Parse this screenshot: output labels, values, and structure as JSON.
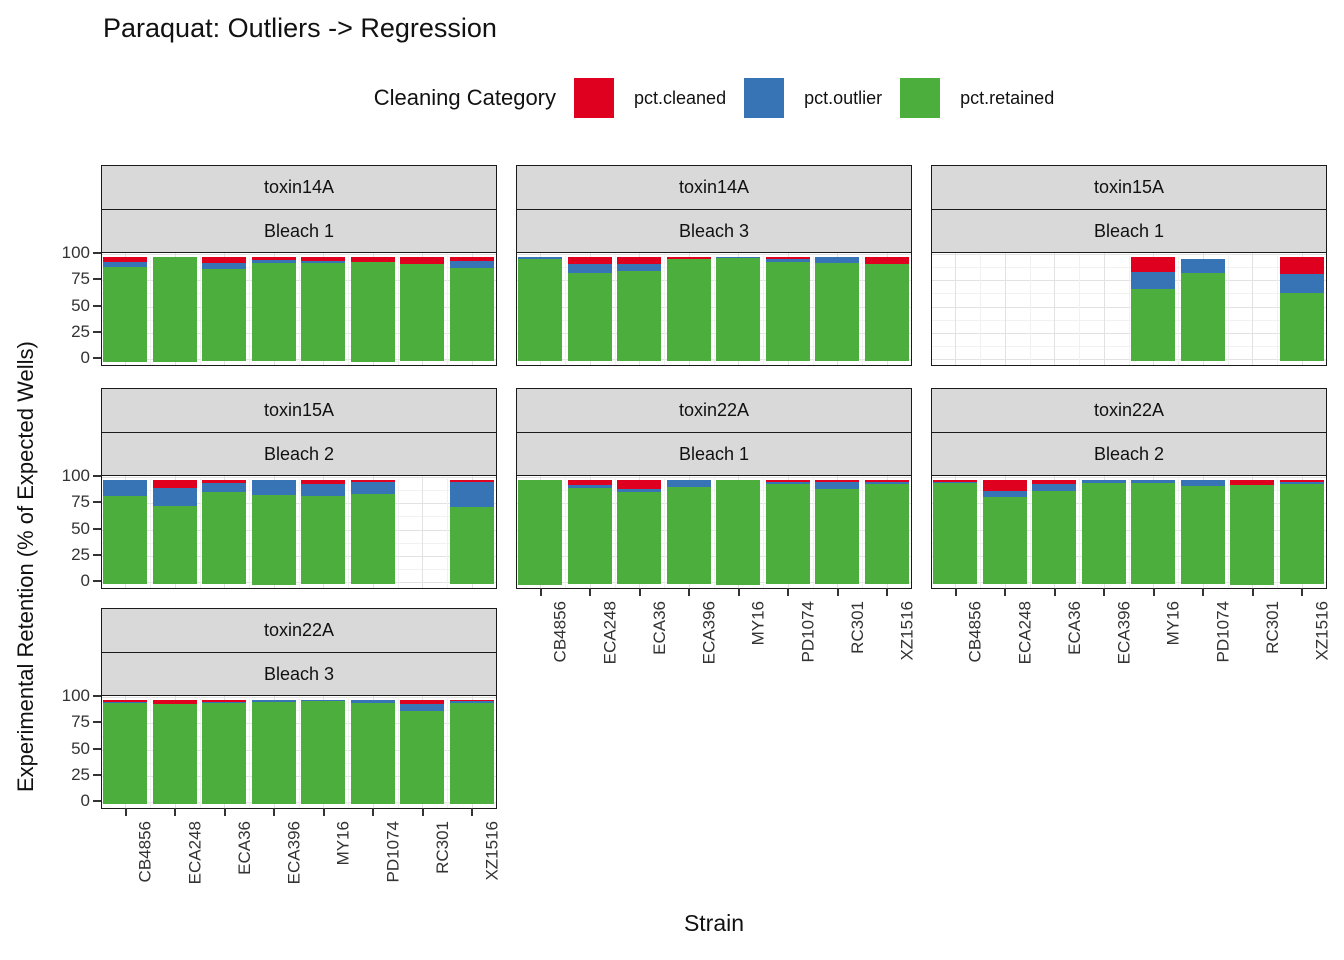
{
  "chart_data": {
    "type": "bar",
    "stacked": true,
    "title": "Paraquat: Outliers -> Regression",
    "legend_title": "Cleaning Category",
    "xlabel": "Strain",
    "ylabel": "Experimental Retention (% of Expected Wells)",
    "ylim": [
      0,
      100
    ],
    "yticks": [
      0,
      25,
      50,
      75,
      100
    ],
    "grid": true,
    "legend_position": "top",
    "series_colors": {
      "pct.cleaned": "#DF0020",
      "pct.outlier": "#3674B5",
      "pct.retained": "#4CAE3D"
    },
    "legend": [
      "pct.cleaned",
      "pct.outlier",
      "pct.retained"
    ],
    "categories": [
      "CB4856",
      "ECA248",
      "ECA36",
      "ECA396",
      "MY16",
      "PD1074",
      "RC301",
      "XZ1516"
    ],
    "panels": [
      {
        "facet": "toxin14A",
        "bleach": "Bleach 1",
        "row": 0,
        "col": 0,
        "x_axis": false,
        "series": {
          "pct.cleaned": [
            5,
            0,
            6,
            3,
            4,
            5,
            7,
            4
          ],
          "pct.outlier": [
            5,
            0,
            6,
            3,
            2,
            0,
            0,
            7
          ],
          "pct.retained": [
            90,
            100,
            88,
            94,
            94,
            95,
            93,
            89
          ]
        }
      },
      {
        "facet": "toxin14A",
        "bleach": "Bleach 3",
        "row": 0,
        "col": 1,
        "x_axis": false,
        "series": {
          "pct.cleaned": [
            0,
            7,
            7,
            2,
            0,
            2,
            0,
            7
          ],
          "pct.outlier": [
            2,
            9,
            7,
            0,
            1,
            3,
            6,
            0
          ],
          "pct.retained": [
            98,
            84,
            86,
            98,
            99,
            95,
            94,
            93
          ]
        }
      },
      {
        "facet": "toxin15A",
        "bleach": "Bleach 1",
        "row": 0,
        "col": 2,
        "x_axis": false,
        "series": {
          "pct.cleaned": [
            null,
            null,
            null,
            null,
            15,
            0,
            null,
            17
          ],
          "pct.outlier": [
            null,
            null,
            null,
            null,
            16,
            14,
            null,
            18
          ],
          "pct.retained": [
            null,
            null,
            null,
            null,
            69,
            84,
            null,
            65
          ]
        }
      },
      {
        "facet": "toxin15A",
        "bleach": "Bleach 2",
        "row": 1,
        "col": 0,
        "x_axis": false,
        "series": {
          "pct.cleaned": [
            0,
            8,
            3,
            0,
            4,
            2,
            null,
            2
          ],
          "pct.outlier": [
            16,
            17,
            9,
            15,
            12,
            12,
            null,
            24
          ],
          "pct.retained": [
            84,
            75,
            88,
            85,
            84,
            86,
            null,
            74
          ]
        }
      },
      {
        "facet": "toxin22A",
        "bleach": "Bleach 1",
        "row": 1,
        "col": 1,
        "x_axis": true,
        "series": {
          "pct.cleaned": [
            0,
            5,
            9,
            0,
            0,
            2,
            2,
            2
          ],
          "pct.outlier": [
            0,
            3,
            3,
            7,
            0,
            2,
            7,
            2
          ],
          "pct.retained": [
            100,
            92,
            88,
            93,
            100,
            96,
            91,
            96
          ]
        }
      },
      {
        "facet": "toxin22A",
        "bleach": "Bleach 2",
        "row": 1,
        "col": 2,
        "x_axis": true,
        "series": {
          "pct.cleaned": [
            2,
            11,
            4,
            0,
            0,
            0,
            5,
            2
          ],
          "pct.outlier": [
            1,
            6,
            7,
            3,
            3,
            6,
            0,
            2
          ],
          "pct.retained": [
            97,
            83,
            89,
            97,
            97,
            94,
            95,
            96
          ]
        }
      },
      {
        "facet": "toxin22A",
        "bleach": "Bleach 3",
        "row": 2,
        "col": 0,
        "x_axis": true,
        "series": {
          "pct.cleaned": [
            2,
            4,
            2,
            0,
            0,
            0,
            4,
            1
          ],
          "pct.outlier": [
            1,
            0,
            1,
            2,
            1,
            3,
            7,
            2
          ],
          "pct.retained": [
            97,
            96,
            97,
            98,
            99,
            97,
            89,
            97
          ]
        }
      }
    ]
  }
}
